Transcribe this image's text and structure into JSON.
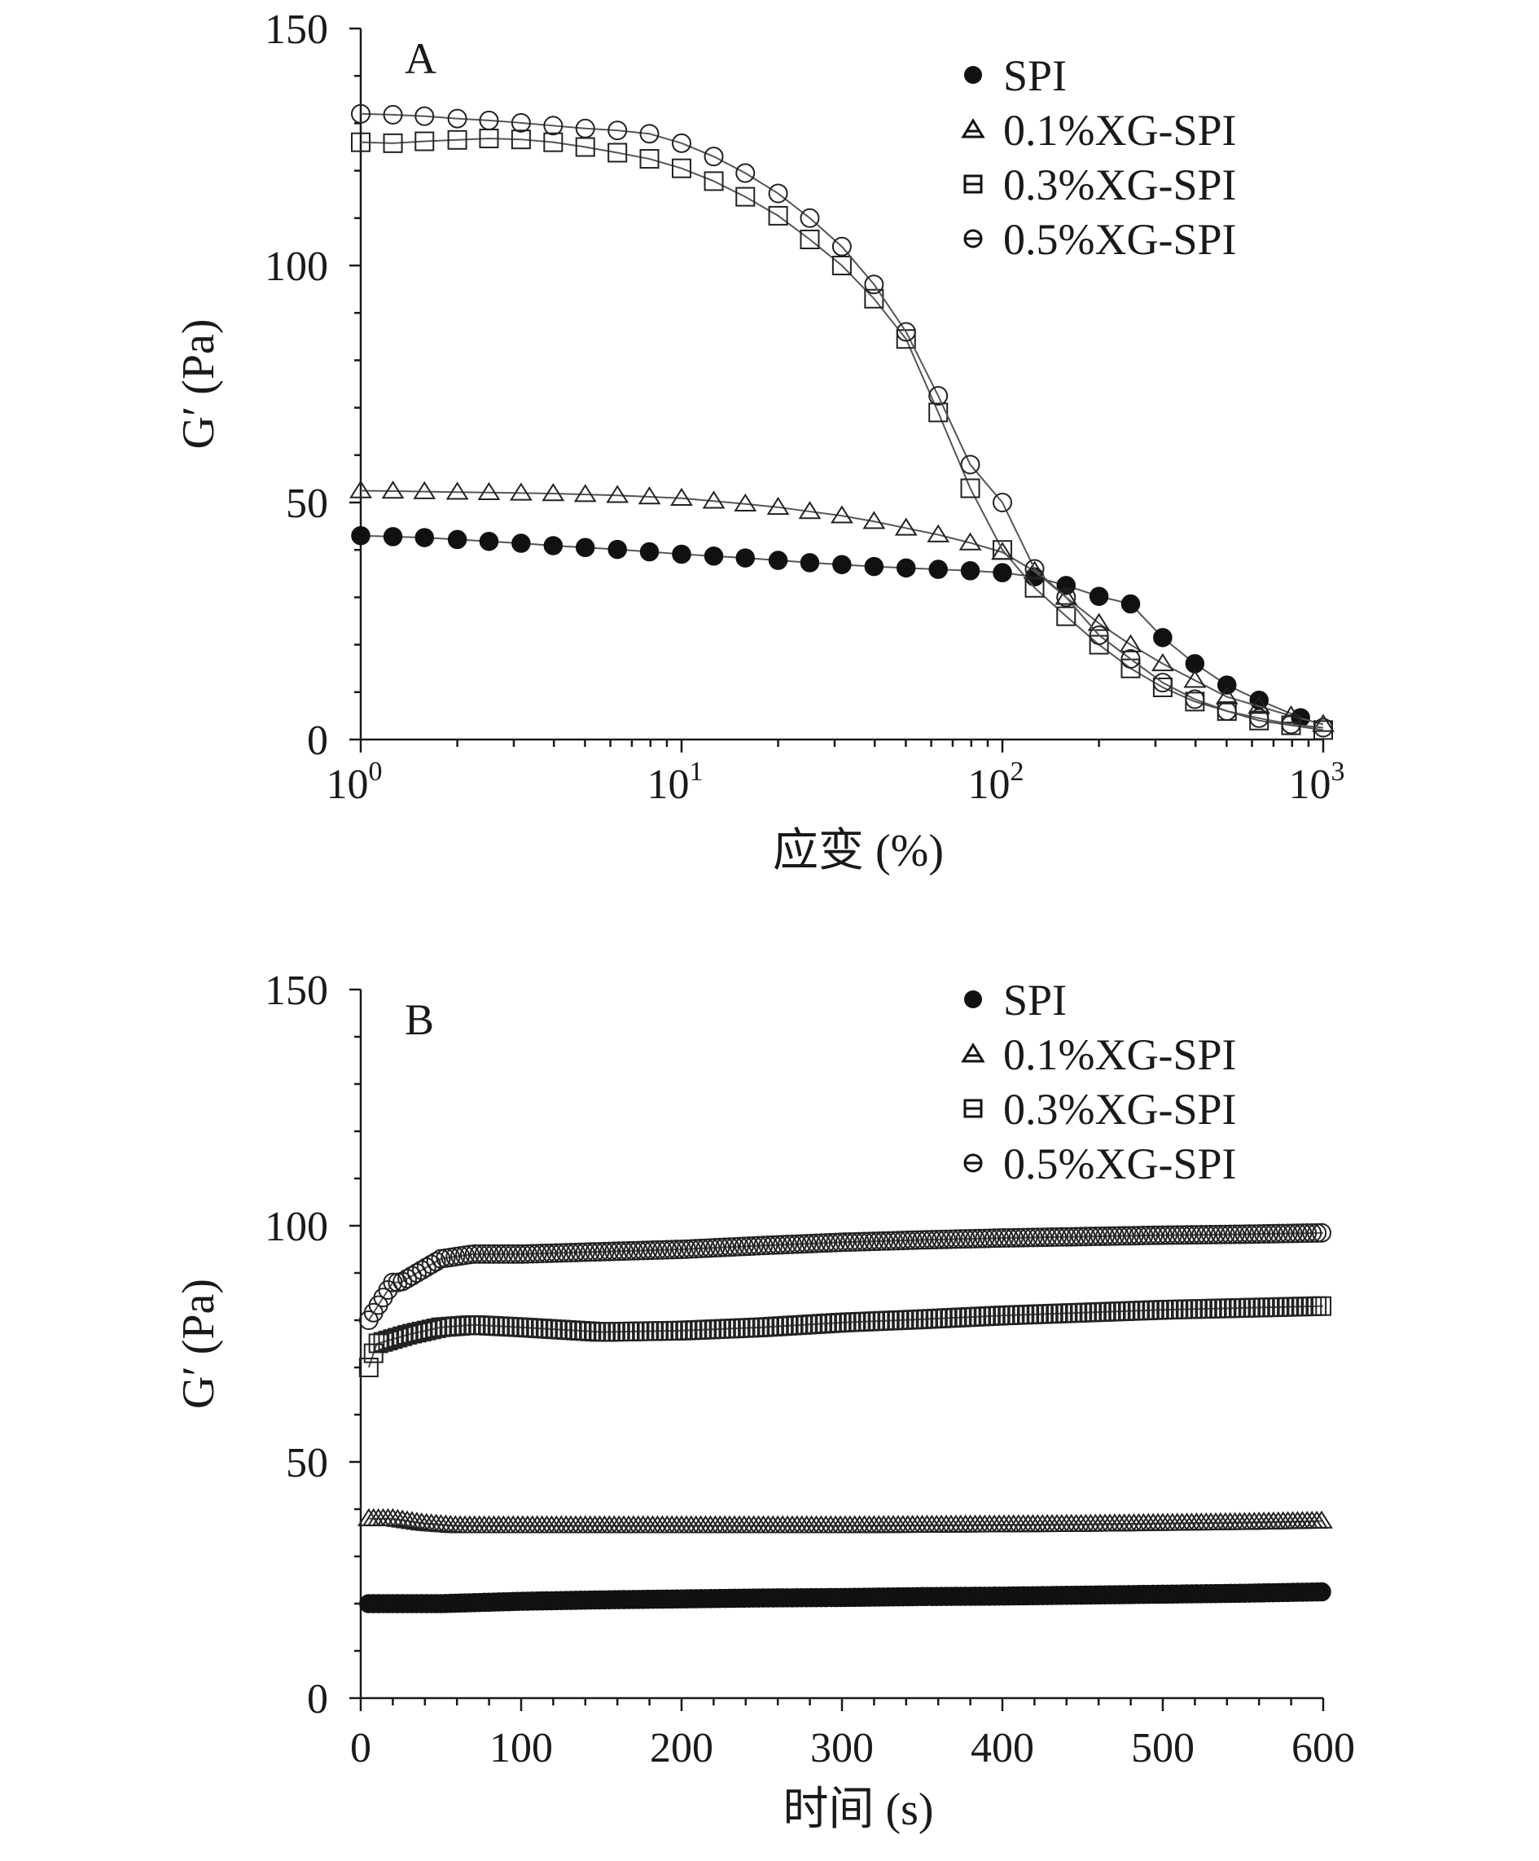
{
  "chart_data": [
    {
      "type": "line",
      "panel_label": "A",
      "xlabel": "应变 (%)",
      "ylabel": "G′ (Pa)",
      "x_scale": "log",
      "xlim": [
        1,
        1000
      ],
      "ylim": [
        0,
        150
      ],
      "x_ticks": [
        1,
        10,
        100,
        1000
      ],
      "x_tick_labels": [
        {
          "base": "10",
          "exp": "0"
        },
        {
          "base": "10",
          "exp": "1"
        },
        {
          "base": "10",
          "exp": "2"
        },
        {
          "base": "10",
          "exp": "3"
        }
      ],
      "y_ticks": [
        0,
        50,
        100,
        150
      ],
      "y_tick_labels": [
        "0",
        "50",
        "100",
        "150"
      ],
      "legend_position": "top-right",
      "series": [
        {
          "name": "SPI",
          "marker": "filled-circle",
          "x": [
            1,
            1.26,
            1.58,
            2,
            2.51,
            3.16,
            3.98,
            5.01,
            6.31,
            7.94,
            10,
            12.6,
            15.8,
            20,
            25.1,
            31.6,
            39.8,
            50.1,
            63.1,
            79.4,
            100,
            126,
            158,
            200,
            251,
            316,
            398,
            501,
            631,
            850
          ],
          "y": [
            43,
            42.8,
            42.6,
            42.2,
            41.8,
            41.4,
            40.9,
            40.5,
            40.1,
            39.6,
            39.1,
            38.7,
            38.3,
            37.8,
            37.3,
            36.9,
            36.5,
            36.2,
            35.9,
            35.6,
            35.2,
            34.3,
            32.5,
            30.2,
            28.6,
            21.5,
            16,
            11.5,
            8.3,
            4.6
          ]
        },
        {
          "name": "0.1%XG-SPI",
          "marker": "open-triangle",
          "x": [
            1,
            1.26,
            1.58,
            2,
            2.51,
            3.16,
            3.98,
            5.01,
            6.31,
            7.94,
            10,
            12.6,
            15.8,
            20,
            25.1,
            31.6,
            39.8,
            50.1,
            63.1,
            79.4,
            100,
            126,
            158,
            200,
            251,
            316,
            398,
            501,
            631,
            794,
            1000
          ],
          "y": [
            52.5,
            52.4,
            52.3,
            52.2,
            52.1,
            52,
            51.9,
            51.7,
            51.5,
            51.2,
            50.9,
            50.3,
            49.7,
            49,
            48.1,
            47.2,
            46,
            44.6,
            43.2,
            41.5,
            39.5,
            35.5,
            30,
            24.5,
            20,
            16,
            12.5,
            9,
            7,
            5,
            3.2
          ]
        },
        {
          "name": "0.3%XG-SPI",
          "marker": "open-square",
          "x": [
            1,
            1.26,
            1.58,
            2,
            2.51,
            3.16,
            3.98,
            5.01,
            6.31,
            7.94,
            10,
            12.6,
            15.8,
            20,
            25.1,
            31.6,
            39.8,
            50.1,
            63.1,
            79.4,
            100,
            126,
            158,
            200,
            251,
            316,
            398,
            501,
            631,
            794,
            1000
          ],
          "y": [
            126,
            125.8,
            126.2,
            126.5,
            126.8,
            126.6,
            126,
            125,
            123.8,
            122.5,
            120.5,
            117.8,
            114.5,
            110.5,
            105.5,
            100,
            93,
            84.5,
            69,
            53,
            40,
            32,
            26,
            20,
            15,
            11,
            8,
            6,
            4,
            3,
            2
          ]
        },
        {
          "name": "0.5%XG-SPI",
          "marker": "open-circle",
          "x": [
            1,
            1.26,
            1.58,
            2,
            2.51,
            3.16,
            3.98,
            5.01,
            6.31,
            7.94,
            10,
            12.6,
            15.8,
            20,
            25.1,
            31.6,
            39.8,
            50.1,
            63.1,
            79.4,
            100,
            126,
            158,
            200,
            251,
            316,
            398,
            501,
            631,
            794,
            1000
          ],
          "y": [
            132,
            131.8,
            131.5,
            131,
            130.6,
            130.1,
            129.5,
            128.9,
            128.5,
            127.8,
            125.8,
            123,
            119.5,
            115.2,
            110,
            104,
            96,
            86,
            72.5,
            58,
            50,
            36,
            30,
            22,
            17,
            12,
            8.5,
            6,
            4.5,
            3.2,
            2.5
          ]
        }
      ]
    },
    {
      "type": "line",
      "panel_label": "B",
      "xlabel": "时间 (s)",
      "ylabel": "G′ (Pa)",
      "x_scale": "linear",
      "xlim": [
        0,
        600
      ],
      "ylim": [
        0,
        150
      ],
      "x_ticks": [
        0,
        100,
        200,
        300,
        400,
        500,
        600
      ],
      "x_tick_labels": [
        "0",
        "100",
        "200",
        "300",
        "400",
        "500",
        "600"
      ],
      "y_ticks": [
        0,
        50,
        100,
        150
      ],
      "y_tick_labels": [
        "0",
        "50",
        "100",
        "150"
      ],
      "legend_position": "top-right",
      "series": [
        {
          "name": "SPI",
          "marker": "filled-circle",
          "x": [
            5,
            50,
            100,
            150,
            200,
            250,
            300,
            350,
            400,
            450,
            500,
            550,
            600
          ],
          "y": [
            20,
            20,
            20.5,
            20.8,
            21,
            21.2,
            21.3,
            21.5,
            21.6,
            21.8,
            22,
            22.2,
            22.5
          ]
        },
        {
          "name": "0.1%XG-SPI",
          "marker": "open-triangle",
          "x": [
            5,
            20,
            40,
            60,
            100,
            150,
            200,
            250,
            300,
            350,
            400,
            450,
            500,
            550,
            600
          ],
          "y": [
            38,
            38,
            37,
            36.5,
            36.5,
            36.5,
            36.5,
            36.5,
            36.5,
            36.6,
            36.7,
            36.8,
            37,
            37.2,
            37.5
          ]
        },
        {
          "name": "0.3%XG-SPI",
          "marker": "open-square",
          "x": [
            5,
            10,
            20,
            30,
            50,
            70,
            100,
            150,
            200,
            250,
            300,
            350,
            400,
            450,
            500,
            550,
            600
          ],
          "y": [
            70,
            75,
            76,
            77,
            78.5,
            79,
            78.5,
            77.5,
            77.8,
            78.5,
            79.5,
            80.2,
            81,
            81.6,
            82.2,
            82.6,
            83
          ]
        },
        {
          "name": "0.5%XG-SPI",
          "marker": "open-circle",
          "x": [
            5,
            20,
            25,
            40,
            50,
            70,
            100,
            150,
            200,
            250,
            300,
            350,
            400,
            450,
            500,
            550,
            600
          ],
          "y": [
            80,
            88,
            88,
            91,
            93,
            94,
            94,
            94.5,
            95,
            95.8,
            96.5,
            97,
            97.4,
            97.7,
            98,
            98.2,
            98.5
          ]
        }
      ]
    }
  ]
}
